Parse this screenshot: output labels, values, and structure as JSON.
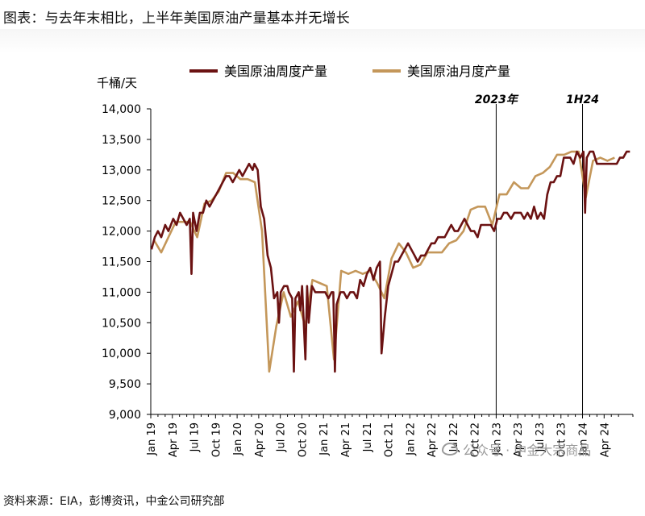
{
  "page_title": "图表：与去年末相比，上半年美国原油产量基本并无增长",
  "source_note": "资料来源：EIA，彭博资讯，中金公司研究部",
  "watermark": "公众号 · 中金大宗商品",
  "colors": {
    "weekly": "#6b1212",
    "monthly": "#c4975a",
    "axis": "#000000"
  },
  "chart_data": {
    "type": "line",
    "ylabel": "千桶/天",
    "ylim": [
      9000,
      14000
    ],
    "yticks": [
      9000,
      9500,
      10000,
      10500,
      11000,
      11500,
      12000,
      12500,
      13000,
      13500,
      14000
    ],
    "ytick_labels": [
      "9,000",
      "9,500",
      "10,000",
      "10,500",
      "11,000",
      "11,500",
      "12,000",
      "12,500",
      "13,000",
      "13,500",
      "14,000"
    ],
    "xlim": [
      "2019-01",
      "2024-08"
    ],
    "xtick_labels": [
      "Jan 19",
      "Apr 19",
      "Jul 19",
      "Oct 19",
      "Jan 20",
      "Apr 20",
      "Jul 20",
      "Oct 20",
      "Jan 21",
      "Apr 21",
      "Jul 21",
      "Oct 21",
      "Jan 22",
      "Apr 22",
      "Jul 22",
      "Oct 22",
      "Jan 23",
      "Apr 23",
      "Jul 23",
      "Oct 23",
      "Jan 24",
      "Apr 24"
    ],
    "legend_position": "top",
    "annotations": [
      {
        "label": "2023年",
        "x": "2023-01"
      },
      {
        "label": "1H24",
        "x": "2024-01"
      }
    ],
    "series": [
      {
        "name": "美国原油周度产量",
        "points": [
          [
            "2019-01-04",
            11700
          ],
          [
            "2019-01-18",
            11900
          ],
          [
            "2019-02-01",
            12000
          ],
          [
            "2019-02-15",
            11900
          ],
          [
            "2019-03-01",
            12100
          ],
          [
            "2019-03-15",
            12000
          ],
          [
            "2019-04-05",
            12200
          ],
          [
            "2019-04-19",
            12100
          ],
          [
            "2019-05-03",
            12300
          ],
          [
            "2019-05-17",
            12200
          ],
          [
            "2019-05-31",
            12100
          ],
          [
            "2019-06-14",
            12200
          ],
          [
            "2019-06-21",
            11300
          ],
          [
            "2019-06-28",
            12300
          ],
          [
            "2019-07-12",
            12000
          ],
          [
            "2019-07-26",
            12300
          ],
          [
            "2019-08-09",
            12300
          ],
          [
            "2019-08-23",
            12500
          ],
          [
            "2019-09-06",
            12400
          ],
          [
            "2019-09-20",
            12500
          ],
          [
            "2019-10-04",
            12600
          ],
          [
            "2019-10-18",
            12700
          ],
          [
            "2019-11-01",
            12800
          ],
          [
            "2019-11-15",
            12900
          ],
          [
            "2019-11-29",
            12900
          ],
          [
            "2019-12-13",
            12800
          ],
          [
            "2019-12-27",
            12900
          ],
          [
            "2020-01-10",
            13000
          ],
          [
            "2020-01-24",
            12900
          ],
          [
            "2020-02-07",
            13000
          ],
          [
            "2020-02-21",
            13100
          ],
          [
            "2020-03-06",
            13000
          ],
          [
            "2020-03-13",
            13100
          ],
          [
            "2020-03-27",
            13000
          ],
          [
            "2020-04-10",
            12400
          ],
          [
            "2020-04-24",
            12200
          ],
          [
            "2020-05-08",
            11600
          ],
          [
            "2020-05-22",
            11400
          ],
          [
            "2020-06-05",
            10900
          ],
          [
            "2020-06-19",
            11000
          ],
          [
            "2020-06-26",
            10500
          ],
          [
            "2020-07-03",
            11000
          ],
          [
            "2020-07-17",
            11100
          ],
          [
            "2020-07-31",
            11100
          ],
          [
            "2020-08-07",
            11000
          ],
          [
            "2020-08-21",
            10900
          ],
          [
            "2020-08-28",
            9700
          ],
          [
            "2020-09-04",
            10900
          ],
          [
            "2020-09-18",
            11000
          ],
          [
            "2020-09-25",
            10700
          ],
          [
            "2020-10-02",
            11100
          ],
          [
            "2020-10-16",
            9900
          ],
          [
            "2020-10-23",
            11100
          ],
          [
            "2020-10-30",
            10500
          ],
          [
            "2020-11-13",
            11100
          ],
          [
            "2020-11-27",
            11000
          ],
          [
            "2020-12-11",
            11000
          ],
          [
            "2020-12-25",
            11000
          ],
          [
            "2021-01-08",
            11000
          ],
          [
            "2021-01-22",
            10900
          ],
          [
            "2021-02-05",
            11000
          ],
          [
            "2021-02-12",
            11000
          ],
          [
            "2021-02-19",
            9700
          ],
          [
            "2021-02-26",
            10800
          ],
          [
            "2021-03-12",
            11000
          ],
          [
            "2021-03-26",
            11000
          ],
          [
            "2021-04-09",
            10900
          ],
          [
            "2021-04-23",
            11000
          ],
          [
            "2021-05-07",
            11000
          ],
          [
            "2021-05-21",
            10900
          ],
          [
            "2021-06-04",
            11200
          ],
          [
            "2021-06-18",
            11100
          ],
          [
            "2021-07-02",
            11300
          ],
          [
            "2021-07-16",
            11400
          ],
          [
            "2021-07-30",
            11200
          ],
          [
            "2021-08-13",
            11400
          ],
          [
            "2021-08-27",
            11500
          ],
          [
            "2021-09-03",
            10000
          ],
          [
            "2021-09-17",
            10600
          ],
          [
            "2021-10-01",
            11100
          ],
          [
            "2021-10-15",
            11300
          ],
          [
            "2021-10-29",
            11500
          ],
          [
            "2021-11-12",
            11500
          ],
          [
            "2021-11-26",
            11600
          ],
          [
            "2021-12-10",
            11700
          ],
          [
            "2021-12-24",
            11800
          ],
          [
            "2022-01-07",
            11700
          ],
          [
            "2022-01-21",
            11600
          ],
          [
            "2022-02-04",
            11500
          ],
          [
            "2022-02-18",
            11600
          ],
          [
            "2022-03-04",
            11600
          ],
          [
            "2022-03-18",
            11700
          ],
          [
            "2022-04-01",
            11800
          ],
          [
            "2022-04-15",
            11800
          ],
          [
            "2022-04-29",
            11900
          ],
          [
            "2022-05-13",
            11900
          ],
          [
            "2022-05-27",
            11900
          ],
          [
            "2022-06-10",
            12000
          ],
          [
            "2022-06-24",
            12100
          ],
          [
            "2022-07-08",
            12000
          ],
          [
            "2022-07-22",
            12000
          ],
          [
            "2022-08-05",
            12100
          ],
          [
            "2022-08-19",
            12200
          ],
          [
            "2022-09-02",
            12100
          ],
          [
            "2022-09-16",
            12000
          ],
          [
            "2022-09-30",
            12000
          ],
          [
            "2022-10-14",
            11900
          ],
          [
            "2022-10-28",
            12100
          ],
          [
            "2022-11-11",
            12100
          ],
          [
            "2022-11-25",
            12100
          ],
          [
            "2022-12-09",
            12100
          ],
          [
            "2022-12-23",
            12000
          ],
          [
            "2023-01-06",
            12200
          ],
          [
            "2023-01-20",
            12200
          ],
          [
            "2023-02-03",
            12300
          ],
          [
            "2023-02-17",
            12300
          ],
          [
            "2023-03-03",
            12200
          ],
          [
            "2023-03-17",
            12300
          ],
          [
            "2023-03-31",
            12300
          ],
          [
            "2023-04-14",
            12300
          ],
          [
            "2023-04-28",
            12200
          ],
          [
            "2023-05-12",
            12300
          ],
          [
            "2023-05-26",
            12200
          ],
          [
            "2023-06-09",
            12400
          ],
          [
            "2023-06-23",
            12200
          ],
          [
            "2023-07-07",
            12300
          ],
          [
            "2023-07-21",
            12200
          ],
          [
            "2023-08-04",
            12600
          ],
          [
            "2023-08-18",
            12800
          ],
          [
            "2023-09-01",
            12800
          ],
          [
            "2023-09-15",
            12900
          ],
          [
            "2023-09-29",
            12900
          ],
          [
            "2023-10-13",
            13200
          ],
          [
            "2023-10-27",
            13200
          ],
          [
            "2023-11-10",
            13200
          ],
          [
            "2023-11-24",
            13100
          ],
          [
            "2023-12-08",
            13300
          ],
          [
            "2023-12-22",
            13200
          ],
          [
            "2024-01-05",
            13300
          ],
          [
            "2024-01-12",
            12300
          ],
          [
            "2024-01-19",
            13200
          ],
          [
            "2024-02-02",
            13300
          ],
          [
            "2024-02-16",
            13300
          ],
          [
            "2024-03-01",
            13100
          ],
          [
            "2024-03-15",
            13100
          ],
          [
            "2024-03-29",
            13100
          ],
          [
            "2024-04-12",
            13100
          ],
          [
            "2024-04-26",
            13100
          ],
          [
            "2024-05-10",
            13100
          ],
          [
            "2024-05-24",
            13100
          ],
          [
            "2024-06-07",
            13200
          ],
          [
            "2024-06-21",
            13200
          ],
          [
            "2024-07-05",
            13300
          ],
          [
            "2024-07-19",
            13300
          ]
        ]
      },
      {
        "name": "美国原油月度产量",
        "points": [
          [
            "2019-01-15",
            11850
          ],
          [
            "2019-02-15",
            11650
          ],
          [
            "2019-03-15",
            11900
          ],
          [
            "2019-04-15",
            12150
          ],
          [
            "2019-05-15",
            12150
          ],
          [
            "2019-06-15",
            12150
          ],
          [
            "2019-07-15",
            11900
          ],
          [
            "2019-08-15",
            12450
          ],
          [
            "2019-09-15",
            12500
          ],
          [
            "2019-10-15",
            12650
          ],
          [
            "2019-11-15",
            12950
          ],
          [
            "2019-12-15",
            12950
          ],
          [
            "2020-01-15",
            12850
          ],
          [
            "2020-02-15",
            12850
          ],
          [
            "2020-03-15",
            12800
          ],
          [
            "2020-04-15",
            12000
          ],
          [
            "2020-05-15",
            9700
          ],
          [
            "2020-06-15",
            10450
          ],
          [
            "2020-07-15",
            11000
          ],
          [
            "2020-08-15",
            10600
          ],
          [
            "2020-09-15",
            10850
          ],
          [
            "2020-10-15",
            10450
          ],
          [
            "2020-11-15",
            11200
          ],
          [
            "2020-12-15",
            11150
          ],
          [
            "2021-01-15",
            11100
          ],
          [
            "2021-02-15",
            9900
          ],
          [
            "2021-03-15",
            11350
          ],
          [
            "2021-04-15",
            11300
          ],
          [
            "2021-05-15",
            11350
          ],
          [
            "2021-06-15",
            11300
          ],
          [
            "2021-07-15",
            11350
          ],
          [
            "2021-08-15",
            11150
          ],
          [
            "2021-09-15",
            10900
          ],
          [
            "2021-10-15",
            11550
          ],
          [
            "2021-11-15",
            11800
          ],
          [
            "2021-12-15",
            11650
          ],
          [
            "2022-01-15",
            11400
          ],
          [
            "2022-02-15",
            11450
          ],
          [
            "2022-03-15",
            11650
          ],
          [
            "2022-04-15",
            11650
          ],
          [
            "2022-05-15",
            11650
          ],
          [
            "2022-06-15",
            11800
          ],
          [
            "2022-07-15",
            11850
          ],
          [
            "2022-08-15",
            12000
          ],
          [
            "2022-09-15",
            12350
          ],
          [
            "2022-10-15",
            12400
          ],
          [
            "2022-11-15",
            12400
          ],
          [
            "2022-12-15",
            12100
          ],
          [
            "2023-01-15",
            12600
          ],
          [
            "2023-02-15",
            12600
          ],
          [
            "2023-03-15",
            12800
          ],
          [
            "2023-04-15",
            12700
          ],
          [
            "2023-05-15",
            12700
          ],
          [
            "2023-06-15",
            12900
          ],
          [
            "2023-07-15",
            12950
          ],
          [
            "2023-08-15",
            13050
          ],
          [
            "2023-09-15",
            13250
          ],
          [
            "2023-10-15",
            13250
          ],
          [
            "2023-11-15",
            13300
          ],
          [
            "2023-12-15",
            13300
          ],
          [
            "2024-01-15",
            12550
          ],
          [
            "2024-02-15",
            13150
          ],
          [
            "2024-03-15",
            13200
          ],
          [
            "2024-04-15",
            13150
          ],
          [
            "2024-05-15",
            13200
          ]
        ]
      }
    ]
  }
}
